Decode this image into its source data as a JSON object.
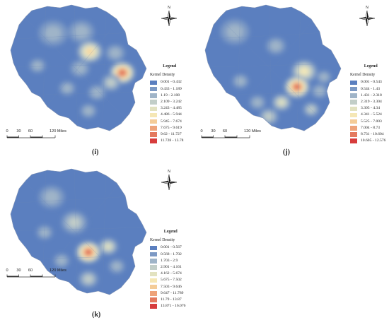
{
  "panels": [
    {
      "id": "i",
      "label": "(i)",
      "legend_title": "Legend",
      "legend_subtitle": "Kernel Density",
      "classes": [
        "0.001 - 0.432",
        "0.433 - 1.189",
        "1.19 - 2.108",
        "2.109 - 3.242",
        "3.243 - 4.485",
        "4.486 - 5.944",
        "5.945 - 7.674",
        "7.675 - 9.619",
        "9.62 - 11.727",
        "11.728 - 13.78"
      ],
      "scale_labels": [
        "0",
        "30",
        "60",
        "120 Miles"
      ],
      "north_label": "N"
    },
    {
      "id": "j",
      "label": "(j)",
      "legend_title": "Legend",
      "legend_subtitle": "Kernel Density",
      "classes": [
        "0.001 - 0.543",
        "0.544 - 1.43",
        "1.431 - 2.318",
        "2.319 - 3.304",
        "3.305 - 4.34",
        "4.341 - 5.524",
        "5.525 - 7.003",
        "7.004 - 8.73",
        "8.731 - 10.604",
        "10.605 - 12.576"
      ],
      "scale_labels": [
        "0",
        "30",
        "60",
        "120 Miles"
      ],
      "north_label": "N"
    },
    {
      "id": "k",
      "label": "(k)",
      "legend_title": "Legend",
      "legend_subtitle": "Kernel Density",
      "classes": [
        "0.001 - 0.567",
        "0.568 - 1.702",
        "1.703 - 2.9",
        "2.901 - 4.161",
        "4.162 - 5.674",
        "5.675 - 7.502",
        "7.503 - 9.646",
        "9.647 - 11.789",
        "11.79 - 13.87",
        "13.871 - 16.076"
      ],
      "scale_labels": [
        "0",
        "30",
        "60",
        "120 Miles"
      ],
      "north_label": "N"
    }
  ],
  "colors": {
    "ramp": [
      "#5b7fbf",
      "#7c99c4",
      "#9fb4c8",
      "#c2cec8",
      "#e2e2c0",
      "#f5e7b5",
      "#f4cc98",
      "#eea37a",
      "#e4795e",
      "#d73c3c"
    ],
    "boundary": "#6a86b8"
  }
}
